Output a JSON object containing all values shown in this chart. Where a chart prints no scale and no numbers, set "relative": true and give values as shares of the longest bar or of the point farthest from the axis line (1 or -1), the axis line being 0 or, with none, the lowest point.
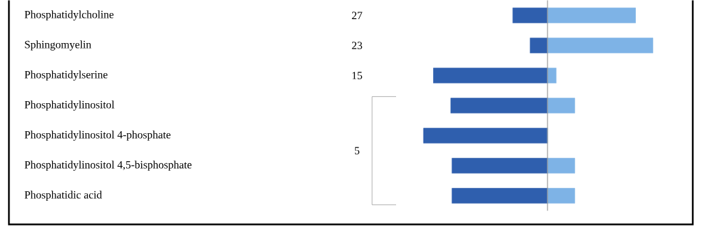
{
  "chart_data": {
    "type": "bar",
    "orientation": "horizontal",
    "relative": true,
    "stacked": true,
    "categories": [
      "Phosphatidylcholine",
      "Sphingomyelin",
      "Phosphatidylserine",
      "Phosphatidylinositol",
      "Phosphatidylinositol 4-phosphate",
      "Phosphatidylinositol 4,5-bisphosphate",
      "Phosphatidic acid"
    ],
    "series": [
      {
        "color": "#2f5fae",
        "values": [
          -0.28,
          -0.14,
          -0.92,
          -0.78,
          -1,
          -0.77,
          -0.77
        ]
      },
      {
        "color": "#7eb3e6",
        "values": [
          0.71,
          0.85,
          0.07,
          0.22,
          0,
          0.22,
          0.22
        ]
      }
    ],
    "annotations": [
      "27",
      "23",
      "15",
      "5"
    ]
  }
}
